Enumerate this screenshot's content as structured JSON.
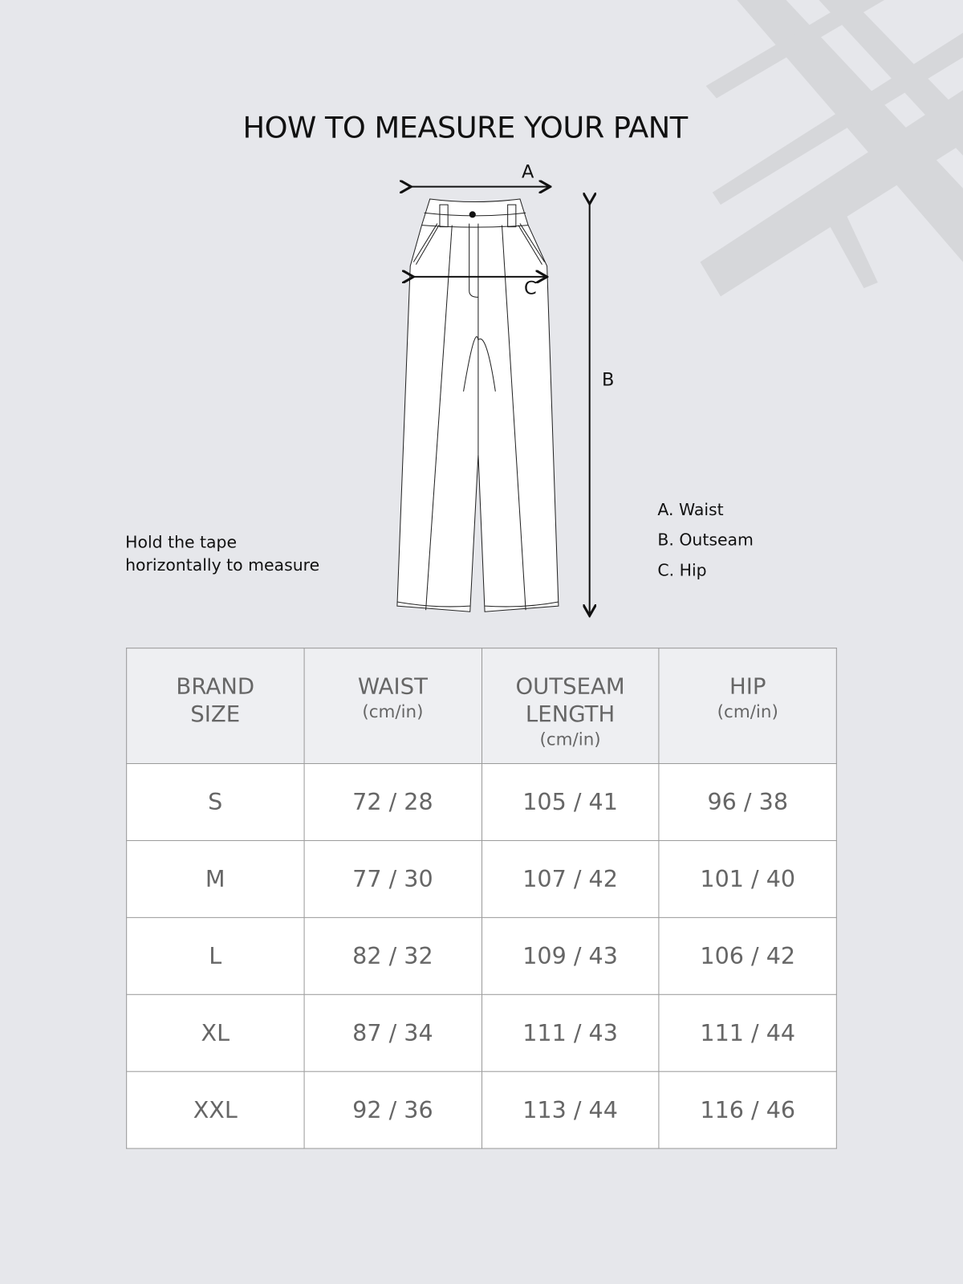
{
  "title": "HOW TO MEASURE YOUR PANT",
  "diagram": {
    "label_a": "A",
    "label_b": "B",
    "label_c": "C"
  },
  "tip": [
    "Hold the tape",
    "horizontally to measure"
  ],
  "legend": [
    "A. Waist",
    "B. Outseam",
    "C. Hip"
  ],
  "table": {
    "headers": [
      {
        "title": [
          "BRAND",
          "SIZE"
        ],
        "unit": ""
      },
      {
        "title": [
          "WAIST"
        ],
        "unit": "(cm/in)"
      },
      {
        "title": [
          "OUTSEAM",
          "LENGTH"
        ],
        "unit": "(cm/in)"
      },
      {
        "title": [
          "HIP"
        ],
        "unit": "(cm/in)"
      }
    ],
    "rows": [
      [
        "S",
        "72 / 28",
        "105 / 41",
        "96 / 38"
      ],
      [
        "M",
        "77 / 30",
        "107 / 42",
        "101 / 40"
      ],
      [
        "L",
        "82 / 32",
        "109 / 43",
        "106 / 42"
      ],
      [
        "XL",
        "87 / 34",
        "111 / 43",
        "111 / 44"
      ],
      [
        "XXL",
        "92 / 36",
        "113 / 44",
        "116 / 46"
      ]
    ]
  },
  "colors": {
    "background": "#e6e7eb",
    "header_fill": "#eeeff2",
    "watermark": "#d6d7da"
  }
}
